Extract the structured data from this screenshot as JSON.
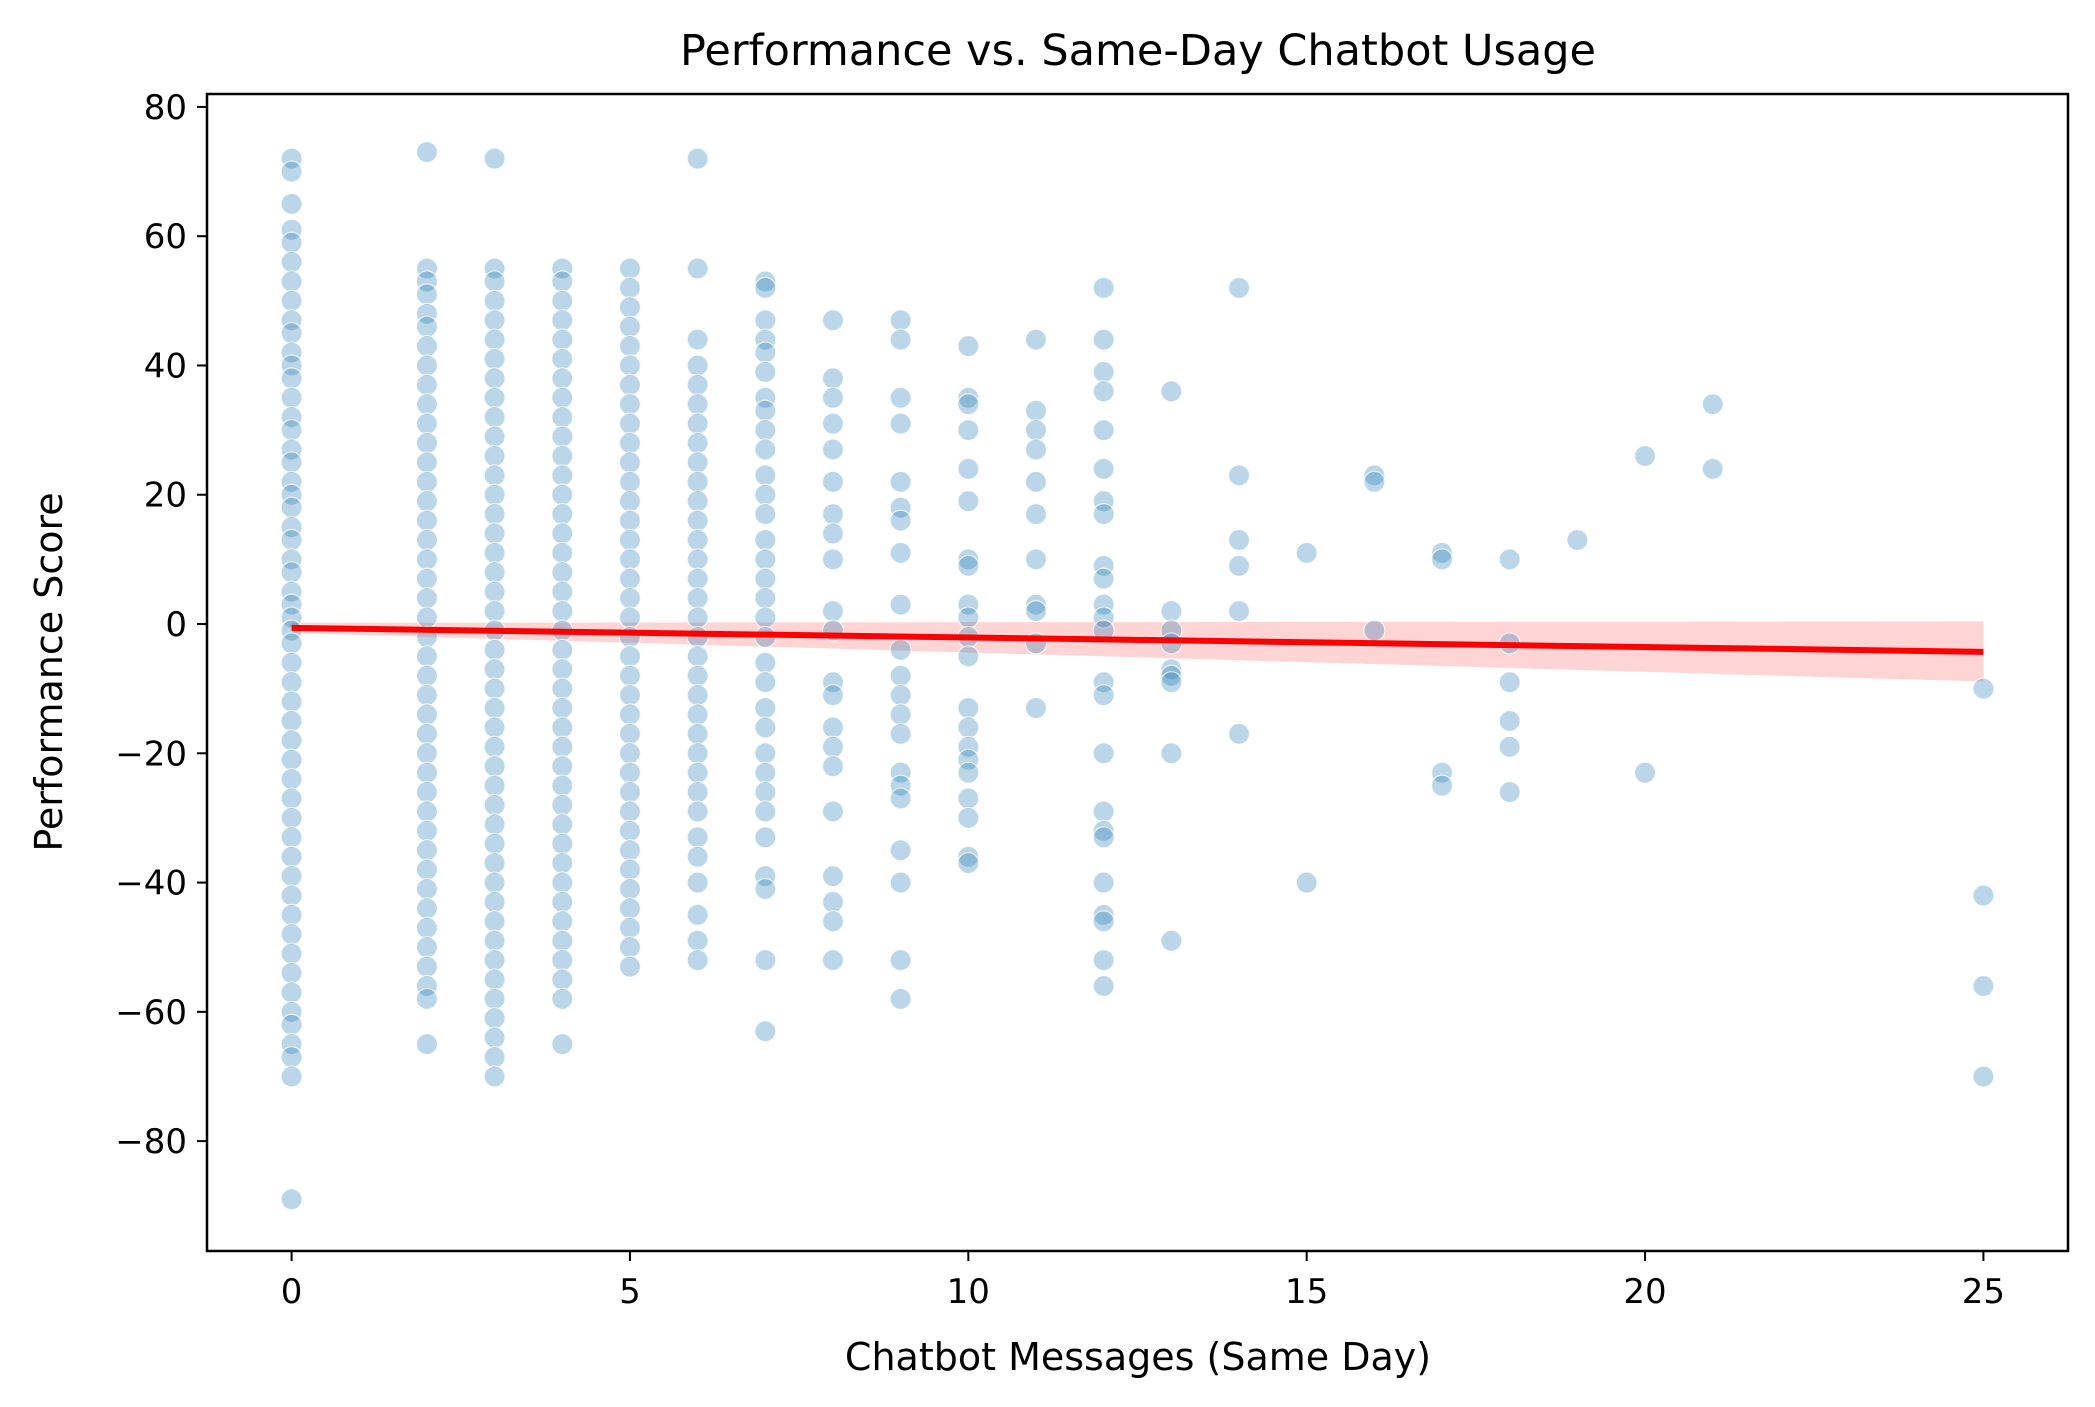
{
  "chart_data": {
    "type": "scatter",
    "title": "Performance vs. Same-Day Chatbot Usage",
    "xlabel": "Chatbot Messages (Same Day)",
    "ylabel": "Performance Score",
    "xlim": [
      -1.25,
      26.25
    ],
    "ylim": [
      -97,
      82
    ],
    "xticks": [
      0,
      5,
      10,
      15,
      20,
      25
    ],
    "yticks": [
      -80,
      -60,
      -40,
      -20,
      0,
      20,
      40,
      60,
      80
    ],
    "xtick_labels": [
      "0",
      "5",
      "10",
      "15",
      "20",
      "25"
    ],
    "ytick_labels": [
      "−80",
      "−60",
      "−40",
      "−20",
      "0",
      "20",
      "40",
      "60",
      "80"
    ],
    "grid": false,
    "legend": "none",
    "scatter_color": "#1f77b4",
    "scatter_alpha": 0.3,
    "points": [
      [
        0,
        72
      ],
      [
        0,
        70
      ],
      [
        0,
        65
      ],
      [
        0,
        61
      ],
      [
        0,
        59
      ],
      [
        0,
        56
      ],
      [
        0,
        53
      ],
      [
        0,
        50
      ],
      [
        0,
        47
      ],
      [
        0,
        45
      ],
      [
        0,
        42
      ],
      [
        0,
        40
      ],
      [
        0,
        38
      ],
      [
        0,
        35
      ],
      [
        0,
        32
      ],
      [
        0,
        30
      ],
      [
        0,
        27
      ],
      [
        0,
        25
      ],
      [
        0,
        22
      ],
      [
        0,
        20
      ],
      [
        0,
        18
      ],
      [
        0,
        15
      ],
      [
        0,
        13
      ],
      [
        0,
        10
      ],
      [
        0,
        8
      ],
      [
        0,
        5
      ],
      [
        0,
        3
      ],
      [
        0,
        1
      ],
      [
        0,
        -1
      ],
      [
        0,
        -3
      ],
      [
        0,
        -6
      ],
      [
        0,
        -9
      ],
      [
        0,
        -12
      ],
      [
        0,
        -15
      ],
      [
        0,
        -18
      ],
      [
        0,
        -21
      ],
      [
        0,
        -24
      ],
      [
        0,
        -27
      ],
      [
        0,
        -30
      ],
      [
        0,
        -33
      ],
      [
        0,
        -36
      ],
      [
        0,
        -39
      ],
      [
        0,
        -42
      ],
      [
        0,
        -45
      ],
      [
        0,
        -48
      ],
      [
        0,
        -51
      ],
      [
        0,
        -54
      ],
      [
        0,
        -57
      ],
      [
        0,
        -60
      ],
      [
        0,
        -62
      ],
      [
        0,
        -65
      ],
      [
        0,
        -67
      ],
      [
        0,
        -70
      ],
      [
        0,
        -89
      ],
      [
        2,
        73
      ],
      [
        2,
        55
      ],
      [
        2,
        53
      ],
      [
        2,
        51
      ],
      [
        2,
        48
      ],
      [
        2,
        46
      ],
      [
        2,
        43
      ],
      [
        2,
        40
      ],
      [
        2,
        37
      ],
      [
        2,
        34
      ],
      [
        2,
        31
      ],
      [
        2,
        28
      ],
      [
        2,
        25
      ],
      [
        2,
        22
      ],
      [
        2,
        19
      ],
      [
        2,
        16
      ],
      [
        2,
        13
      ],
      [
        2,
        10
      ],
      [
        2,
        7
      ],
      [
        2,
        4
      ],
      [
        2,
        1
      ],
      [
        2,
        -2
      ],
      [
        2,
        -5
      ],
      [
        2,
        -8
      ],
      [
        2,
        -11
      ],
      [
        2,
        -14
      ],
      [
        2,
        -17
      ],
      [
        2,
        -20
      ],
      [
        2,
        -23
      ],
      [
        2,
        -26
      ],
      [
        2,
        -29
      ],
      [
        2,
        -32
      ],
      [
        2,
        -35
      ],
      [
        2,
        -38
      ],
      [
        2,
        -41
      ],
      [
        2,
        -44
      ],
      [
        2,
        -47
      ],
      [
        2,
        -50
      ],
      [
        2,
        -53
      ],
      [
        2,
        -56
      ],
      [
        2,
        -58
      ],
      [
        2,
        -65
      ],
      [
        3,
        72
      ],
      [
        3,
        55
      ],
      [
        3,
        53
      ],
      [
        3,
        50
      ],
      [
        3,
        47
      ],
      [
        3,
        44
      ],
      [
        3,
        41
      ],
      [
        3,
        38
      ],
      [
        3,
        35
      ],
      [
        3,
        32
      ],
      [
        3,
        29
      ],
      [
        3,
        26
      ],
      [
        3,
        23
      ],
      [
        3,
        20
      ],
      [
        3,
        17
      ],
      [
        3,
        14
      ],
      [
        3,
        11
      ],
      [
        3,
        8
      ],
      [
        3,
        5
      ],
      [
        3,
        2
      ],
      [
        3,
        -1
      ],
      [
        3,
        -4
      ],
      [
        3,
        -7
      ],
      [
        3,
        -10
      ],
      [
        3,
        -13
      ],
      [
        3,
        -16
      ],
      [
        3,
        -19
      ],
      [
        3,
        -22
      ],
      [
        3,
        -25
      ],
      [
        3,
        -28
      ],
      [
        3,
        -31
      ],
      [
        3,
        -34
      ],
      [
        3,
        -37
      ],
      [
        3,
        -40
      ],
      [
        3,
        -43
      ],
      [
        3,
        -46
      ],
      [
        3,
        -49
      ],
      [
        3,
        -52
      ],
      [
        3,
        -55
      ],
      [
        3,
        -58
      ],
      [
        3,
        -61
      ],
      [
        3,
        -64
      ],
      [
        3,
        -67
      ],
      [
        3,
        -70
      ],
      [
        4,
        55
      ],
      [
        4,
        53
      ],
      [
        4,
        50
      ],
      [
        4,
        47
      ],
      [
        4,
        44
      ],
      [
        4,
        41
      ],
      [
        4,
        38
      ],
      [
        4,
        35
      ],
      [
        4,
        32
      ],
      [
        4,
        29
      ],
      [
        4,
        26
      ],
      [
        4,
        23
      ],
      [
        4,
        20
      ],
      [
        4,
        17
      ],
      [
        4,
        14
      ],
      [
        4,
        11
      ],
      [
        4,
        8
      ],
      [
        4,
        5
      ],
      [
        4,
        2
      ],
      [
        4,
        -1
      ],
      [
        4,
        -4
      ],
      [
        4,
        -7
      ],
      [
        4,
        -10
      ],
      [
        4,
        -13
      ],
      [
        4,
        -16
      ],
      [
        4,
        -19
      ],
      [
        4,
        -22
      ],
      [
        4,
        -25
      ],
      [
        4,
        -28
      ],
      [
        4,
        -31
      ],
      [
        4,
        -34
      ],
      [
        4,
        -37
      ],
      [
        4,
        -40
      ],
      [
        4,
        -43
      ],
      [
        4,
        -46
      ],
      [
        4,
        -49
      ],
      [
        4,
        -52
      ],
      [
        4,
        -55
      ],
      [
        4,
        -58
      ],
      [
        4,
        -65
      ],
      [
        5,
        55
      ],
      [
        5,
        52
      ],
      [
        5,
        49
      ],
      [
        5,
        46
      ],
      [
        5,
        43
      ],
      [
        5,
        40
      ],
      [
        5,
        37
      ],
      [
        5,
        34
      ],
      [
        5,
        31
      ],
      [
        5,
        28
      ],
      [
        5,
        25
      ],
      [
        5,
        22
      ],
      [
        5,
        19
      ],
      [
        5,
        16
      ],
      [
        5,
        13
      ],
      [
        5,
        10
      ],
      [
        5,
        7
      ],
      [
        5,
        4
      ],
      [
        5,
        1
      ],
      [
        5,
        -2
      ],
      [
        5,
        -5
      ],
      [
        5,
        -8
      ],
      [
        5,
        -11
      ],
      [
        5,
        -14
      ],
      [
        5,
        -17
      ],
      [
        5,
        -20
      ],
      [
        5,
        -23
      ],
      [
        5,
        -26
      ],
      [
        5,
        -29
      ],
      [
        5,
        -32
      ],
      [
        5,
        -35
      ],
      [
        5,
        -38
      ],
      [
        5,
        -41
      ],
      [
        5,
        -44
      ],
      [
        5,
        -47
      ],
      [
        5,
        -50
      ],
      [
        5,
        -53
      ],
      [
        6,
        72
      ],
      [
        6,
        55
      ],
      [
        6,
        44
      ],
      [
        6,
        40
      ],
      [
        6,
        37
      ],
      [
        6,
        34
      ],
      [
        6,
        31
      ],
      [
        6,
        28
      ],
      [
        6,
        25
      ],
      [
        6,
        22
      ],
      [
        6,
        19
      ],
      [
        6,
        16
      ],
      [
        6,
        13
      ],
      [
        6,
        10
      ],
      [
        6,
        7
      ],
      [
        6,
        4
      ],
      [
        6,
        1
      ],
      [
        6,
        -2
      ],
      [
        6,
        -5
      ],
      [
        6,
        -8
      ],
      [
        6,
        -11
      ],
      [
        6,
        -14
      ],
      [
        6,
        -17
      ],
      [
        6,
        -20
      ],
      [
        6,
        -23
      ],
      [
        6,
        -26
      ],
      [
        6,
        -29
      ],
      [
        6,
        -33
      ],
      [
        6,
        -36
      ],
      [
        6,
        -40
      ],
      [
        6,
        -45
      ],
      [
        6,
        -49
      ],
      [
        6,
        -52
      ],
      [
        7,
        53
      ],
      [
        7,
        52
      ],
      [
        7,
        47
      ],
      [
        7,
        44
      ],
      [
        7,
        42
      ],
      [
        7,
        39
      ],
      [
        7,
        35
      ],
      [
        7,
        33
      ],
      [
        7,
        30
      ],
      [
        7,
        27
      ],
      [
        7,
        23
      ],
      [
        7,
        20
      ],
      [
        7,
        17
      ],
      [
        7,
        13
      ],
      [
        7,
        10
      ],
      [
        7,
        7
      ],
      [
        7,
        4
      ],
      [
        7,
        1
      ],
      [
        7,
        -2
      ],
      [
        7,
        -6
      ],
      [
        7,
        -9
      ],
      [
        7,
        -13
      ],
      [
        7,
        -16
      ],
      [
        7,
        -20
      ],
      [
        7,
        -23
      ],
      [
        7,
        -26
      ],
      [
        7,
        -29
      ],
      [
        7,
        -33
      ],
      [
        7,
        -39
      ],
      [
        7,
        -41
      ],
      [
        7,
        -52
      ],
      [
        7,
        -63
      ],
      [
        8,
        47
      ],
      [
        8,
        38
      ],
      [
        8,
        35
      ],
      [
        8,
        31
      ],
      [
        8,
        27
      ],
      [
        8,
        22
      ],
      [
        8,
        17
      ],
      [
        8,
        14
      ],
      [
        8,
        10
      ],
      [
        8,
        2
      ],
      [
        8,
        -1
      ],
      [
        8,
        -9
      ],
      [
        8,
        -11
      ],
      [
        8,
        -16
      ],
      [
        8,
        -19
      ],
      [
        8,
        -22
      ],
      [
        8,
        -29
      ],
      [
        8,
        -39
      ],
      [
        8,
        -43
      ],
      [
        8,
        -46
      ],
      [
        8,
        -52
      ],
      [
        9,
        47
      ],
      [
        9,
        44
      ],
      [
        9,
        35
      ],
      [
        9,
        31
      ],
      [
        9,
        22
      ],
      [
        9,
        18
      ],
      [
        9,
        16
      ],
      [
        9,
        11
      ],
      [
        9,
        3
      ],
      [
        9,
        -4
      ],
      [
        9,
        -8
      ],
      [
        9,
        -11
      ],
      [
        9,
        -14
      ],
      [
        9,
        -17
      ],
      [
        9,
        -23
      ],
      [
        9,
        -25
      ],
      [
        9,
        -27
      ],
      [
        9,
        -35
      ],
      [
        9,
        -40
      ],
      [
        9,
        -52
      ],
      [
        9,
        -58
      ],
      [
        10,
        43
      ],
      [
        10,
        35
      ],
      [
        10,
        34
      ],
      [
        10,
        30
      ],
      [
        10,
        24
      ],
      [
        10,
        19
      ],
      [
        10,
        10
      ],
      [
        10,
        9
      ],
      [
        10,
        3
      ],
      [
        10,
        1
      ],
      [
        10,
        -2
      ],
      [
        10,
        -5
      ],
      [
        10,
        -13
      ],
      [
        10,
        -16
      ],
      [
        10,
        -19
      ],
      [
        10,
        -21
      ],
      [
        10,
        -23
      ],
      [
        10,
        -27
      ],
      [
        10,
        -30
      ],
      [
        10,
        -36
      ],
      [
        10,
        -37
      ],
      [
        11,
        44
      ],
      [
        11,
        33
      ],
      [
        11,
        30
      ],
      [
        11,
        27
      ],
      [
        11,
        22
      ],
      [
        11,
        17
      ],
      [
        11,
        10
      ],
      [
        11,
        3
      ],
      [
        11,
        2
      ],
      [
        11,
        -3
      ],
      [
        11,
        -13
      ],
      [
        12,
        52
      ],
      [
        12,
        44
      ],
      [
        12,
        39
      ],
      [
        12,
        36
      ],
      [
        12,
        30
      ],
      [
        12,
        24
      ],
      [
        12,
        19
      ],
      [
        12,
        17
      ],
      [
        12,
        9
      ],
      [
        12,
        7
      ],
      [
        12,
        3
      ],
      [
        12,
        1
      ],
      [
        12,
        -1
      ],
      [
        12,
        -9
      ],
      [
        12,
        -11
      ],
      [
        12,
        -20
      ],
      [
        12,
        -29
      ],
      [
        12,
        -32
      ],
      [
        12,
        -33
      ],
      [
        12,
        -40
      ],
      [
        12,
        -45
      ],
      [
        12,
        -46
      ],
      [
        12,
        -52
      ],
      [
        12,
        -56
      ],
      [
        13,
        36
      ],
      [
        13,
        2
      ],
      [
        13,
        -1
      ],
      [
        13,
        -3
      ],
      [
        13,
        -7
      ],
      [
        13,
        -8
      ],
      [
        13,
        -9
      ],
      [
        13,
        -20
      ],
      [
        13,
        -49
      ],
      [
        14,
        52
      ],
      [
        14,
        23
      ],
      [
        14,
        13
      ],
      [
        14,
        9
      ],
      [
        14,
        2
      ],
      [
        14,
        -17
      ],
      [
        15,
        11
      ],
      [
        15,
        -40
      ],
      [
        16,
        23
      ],
      [
        16,
        22
      ],
      [
        16,
        -1
      ],
      [
        17,
        11
      ],
      [
        17,
        10
      ],
      [
        17,
        -23
      ],
      [
        17,
        -25
      ],
      [
        18,
        10
      ],
      [
        18,
        -3
      ],
      [
        18,
        -9
      ],
      [
        18,
        -15
      ],
      [
        18,
        -19
      ],
      [
        18,
        -26
      ],
      [
        19,
        13
      ],
      [
        20,
        26
      ],
      [
        20,
        -23
      ],
      [
        21,
        34
      ],
      [
        21,
        24
      ],
      [
        25,
        -10
      ],
      [
        25,
        -42
      ],
      [
        25,
        -56
      ],
      [
        25,
        -70
      ]
    ],
    "regression": {
      "label": "",
      "color": "#ff0000",
      "band_color": "#ffcccc",
      "x": [
        0,
        25
      ],
      "y": [
        -0.6,
        -4.3
      ],
      "ci_upper": [
        0.2,
        0.4
      ],
      "ci_lower": [
        -1.4,
        -8.9
      ]
    }
  }
}
